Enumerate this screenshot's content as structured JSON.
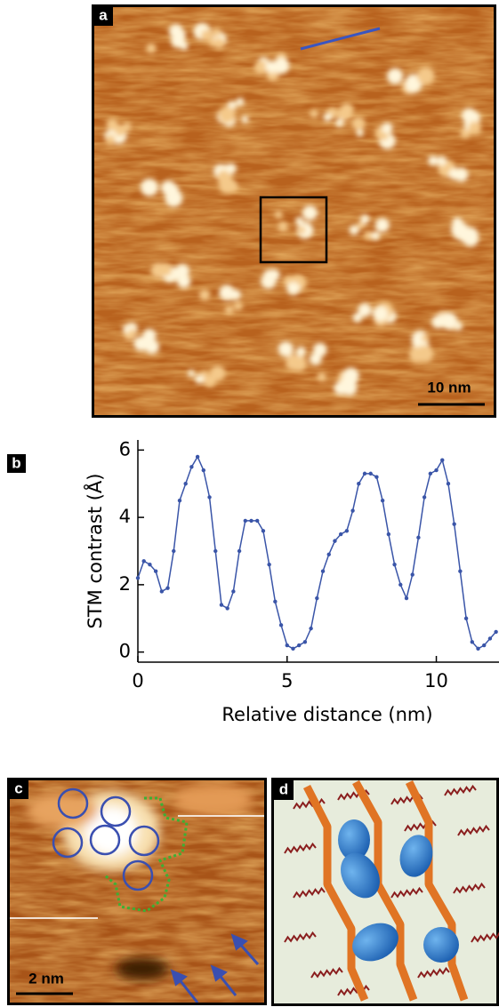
{
  "panels": {
    "a": {
      "label": "a",
      "scale_bar": "10 nm"
    },
    "b": {
      "label": "b"
    },
    "c": {
      "label": "c",
      "scale_bar": "2 nm"
    },
    "d": {
      "label": "d"
    }
  },
  "chart_data": {
    "type": "line",
    "ylabel": "STM contrast (Å)",
    "xlabel": "Relative distance (nm)",
    "color": "#3a55a8",
    "x": [
      0,
      0.2,
      0.4,
      0.6,
      0.8,
      1.0,
      1.2,
      1.4,
      1.6,
      1.8,
      2.0,
      2.2,
      2.4,
      2.6,
      2.8,
      3.0,
      3.2,
      3.4,
      3.6,
      3.8,
      4.0,
      4.2,
      4.4,
      4.6,
      4.8,
      5.0,
      5.2,
      5.4,
      5.6,
      5.8,
      6.0,
      6.2,
      6.4,
      6.6,
      6.8,
      7.0,
      7.2,
      7.4,
      7.6,
      7.8,
      8.0,
      8.2,
      8.4,
      8.6,
      8.8,
      9.0,
      9.2,
      9.4,
      9.6,
      9.8,
      10.0,
      10.2,
      10.4,
      10.6,
      10.8,
      11.0,
      11.2,
      11.4,
      11.6,
      11.8,
      12.0
    ],
    "values": [
      2.2,
      2.7,
      2.6,
      2.4,
      1.8,
      1.9,
      3.0,
      4.5,
      5.0,
      5.5,
      5.8,
      5.4,
      4.6,
      3.0,
      1.4,
      1.3,
      1.8,
      3.0,
      3.9,
      3.9,
      3.9,
      3.6,
      2.6,
      1.5,
      0.8,
      0.2,
      0.1,
      0.2,
      0.3,
      0.7,
      1.6,
      2.4,
      2.9,
      3.3,
      3.5,
      3.6,
      4.2,
      5.0,
      5.3,
      5.3,
      5.2,
      4.5,
      3.5,
      2.6,
      2.0,
      1.6,
      2.3,
      3.4,
      4.6,
      5.3,
      5.4,
      5.7,
      5.0,
      3.8,
      2.4,
      1.0,
      0.3,
      0.1,
      0.2,
      0.4,
      0.6
    ],
    "xlim": [
      0,
      12.1
    ],
    "ylim": [
      -0.3,
      6.3
    ],
    "xticks": [
      0,
      5,
      10
    ],
    "yticks": [
      0,
      2,
      4,
      6
    ]
  }
}
